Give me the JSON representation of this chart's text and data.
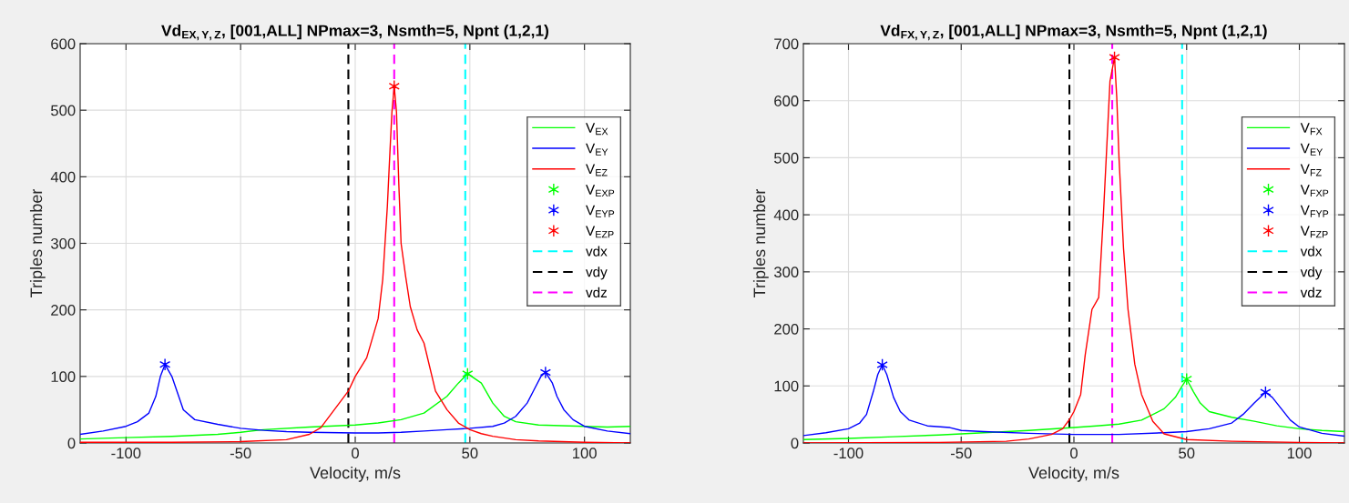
{
  "chart_data": [
    {
      "type": "line",
      "title": "Vd$_{EX,Y,Z}$, [001,ALL] NPmax=3, Nsmth=5, Npnt (1,2,1)",
      "xlabel": "Velocity, m/s",
      "ylabel": "Triples number",
      "xlim": [
        -120,
        120
      ],
      "ylim": [
        0,
        600
      ],
      "xticks": [
        -100,
        -50,
        0,
        50,
        100
      ],
      "yticks": [
        0,
        100,
        200,
        300,
        400,
        500,
        600
      ],
      "grid": true,
      "legend": "right",
      "series": [
        {
          "name": "V$_{EX}$",
          "color": "#00ff00",
          "x": [
            -120,
            -100,
            -80,
            -60,
            -50,
            -40,
            -20,
            0,
            10,
            20,
            30,
            40,
            45,
            49,
            55,
            60,
            65,
            70,
            80,
            90,
            100,
            110,
            120
          ],
          "values": [
            6,
            8,
            10,
            13,
            16,
            20,
            24,
            27,
            30,
            35,
            45,
            70,
            90,
            104,
            90,
            60,
            40,
            32,
            27,
            26,
            25,
            24,
            25
          ]
        },
        {
          "name": "V$_{EY}$",
          "color": "#0000ff",
          "x": [
            -120,
            -110,
            -100,
            -95,
            -90,
            -87,
            -85,
            -83,
            -80,
            -77,
            -75,
            -70,
            -60,
            -50,
            -40,
            -30,
            -20,
            0,
            10,
            20,
            30,
            40,
            50,
            60,
            65,
            70,
            75,
            78,
            81,
            83,
            86,
            88,
            91,
            95,
            100,
            110,
            120
          ],
          "values": [
            13,
            18,
            25,
            32,
            45,
            70,
            100,
            118,
            100,
            70,
            50,
            35,
            28,
            22,
            19,
            17,
            16,
            15,
            15,
            16,
            18,
            20,
            22,
            25,
            30,
            40,
            60,
            80,
            100,
            106,
            90,
            70,
            50,
            35,
            25,
            18,
            14
          ]
        },
        {
          "name": "V$_{EZ}$",
          "color": "#ff0000",
          "x": [
            -120,
            -80,
            -50,
            -30,
            -20,
            -15,
            -10,
            -3,
            0,
            5,
            10,
            12,
            14,
            15,
            16,
            17,
            18,
            19,
            20,
            22,
            24,
            27,
            30,
            35,
            40,
            45,
            50,
            55,
            60,
            70,
            80,
            100,
            120
          ],
          "values": [
            1,
            1,
            2,
            5,
            13,
            23,
            46,
            78,
            100,
            128,
            187,
            246,
            355,
            428,
            497,
            536,
            497,
            390,
            300,
            250,
            205,
            170,
            150,
            78,
            50,
            30,
            20,
            14,
            10,
            5,
            3,
            1,
            0
          ]
        },
        {
          "name": "V$_{EXP}$",
          "type": "scatter",
          "marker": "cross",
          "color": "#00ff00",
          "x": [
            49
          ],
          "values": [
            104
          ]
        },
        {
          "name": "V$_{EYP}$",
          "type": "scatter",
          "marker": "cross",
          "color": "#0000ff",
          "x": [
            -83,
            83
          ],
          "values": [
            118,
            106
          ]
        },
        {
          "name": "V$_{EZP}$",
          "type": "scatter",
          "marker": "cross",
          "color": "#ff0000",
          "x": [
            17
          ],
          "values": [
            536
          ]
        },
        {
          "name": "vdx",
          "type": "line",
          "line_style": "dashed",
          "color": "#00ffff",
          "x": [
            48,
            48
          ],
          "values": [
            0,
            600
          ]
        },
        {
          "name": "vdy",
          "type": "line",
          "line_style": "dashed",
          "color": "#000000",
          "x": [
            -3,
            -3
          ],
          "values": [
            0,
            600
          ]
        },
        {
          "name": "vdz",
          "type": "line",
          "line_style": "dashed",
          "color": "#ff00ff",
          "x": [
            17,
            17
          ],
          "values": [
            0,
            600
          ]
        }
      ]
    },
    {
      "type": "line",
      "title": "Vd$_{FX,Y,Z}$, [001,ALL] NPmax=3, Nsmth=5, Npnt (1,2,1)",
      "xlabel": "Velocity, m/s",
      "ylabel": "Triples number",
      "xlim": [
        -120,
        120
      ],
      "ylim": [
        0,
        700
      ],
      "xticks": [
        -100,
        -50,
        0,
        50,
        100
      ],
      "yticks": [
        0,
        100,
        200,
        300,
        400,
        500,
        600,
        700
      ],
      "grid": true,
      "legend": "right",
      "series": [
        {
          "name": "V$_{FX}$",
          "color": "#00ff00",
          "x": [
            -120,
            -100,
            -80,
            -60,
            -40,
            -20,
            0,
            10,
            20,
            30,
            40,
            45,
            48,
            50,
            53,
            56,
            60,
            70,
            80,
            90,
            100,
            110,
            120
          ],
          "values": [
            6,
            8,
            11,
            14,
            18,
            22,
            27,
            30,
            33,
            40,
            60,
            80,
            100,
            112,
            90,
            70,
            55,
            45,
            38,
            30,
            25,
            22,
            20
          ]
        },
        {
          "name": "V$_{EY}$",
          "color": "#0000ff",
          "x": [
            -120,
            -110,
            -100,
            -95,
            -92,
            -89,
            -87,
            -85,
            -83,
            -80,
            -77,
            -73,
            -65,
            -55,
            -50,
            -40,
            -20,
            0,
            20,
            40,
            50,
            60,
            70,
            75,
            80,
            85,
            88,
            92,
            96,
            100,
            110,
            120
          ],
          "values": [
            13,
            18,
            25,
            35,
            50,
            90,
            120,
            137,
            120,
            80,
            55,
            40,
            30,
            27,
            22,
            20,
            17,
            15,
            15,
            18,
            20,
            25,
            35,
            50,
            70,
            89,
            80,
            60,
            40,
            28,
            17,
            12
          ]
        },
        {
          "name": "V$_{FZ}$",
          "color": "#ff0000",
          "x": [
            -120,
            -60,
            -30,
            -20,
            -10,
            -5,
            -2,
            0,
            3,
            5,
            8,
            11,
            13,
            15,
            16,
            18,
            19,
            20,
            22,
            24,
            27,
            30,
            35,
            40,
            50,
            70,
            100,
            120
          ],
          "values": [
            0,
            1,
            3,
            7,
            15,
            25,
            41,
            55,
            85,
            154,
            234,
            255,
            394,
            553,
            634,
            676,
            606,
            500,
            341,
            234,
            138,
            85,
            38,
            16,
            6,
            3,
            1,
            0
          ]
        },
        {
          "name": "V$_{FXP}$",
          "type": "scatter",
          "marker": "cross",
          "color": "#00ff00",
          "x": [
            50
          ],
          "values": [
            112
          ]
        },
        {
          "name": "V$_{FYP}$",
          "type": "scatter",
          "marker": "cross",
          "color": "#0000ff",
          "x": [
            -85,
            85
          ],
          "values": [
            137,
            89
          ]
        },
        {
          "name": "V$_{FZP}$",
          "type": "scatter",
          "marker": "cross",
          "color": "#ff0000",
          "x": [
            18
          ],
          "values": [
            676
          ]
        },
        {
          "name": "vdx",
          "type": "line",
          "line_style": "dashed",
          "color": "#00ffff",
          "x": [
            48,
            48
          ],
          "values": [
            0,
            700
          ]
        },
        {
          "name": "vdy",
          "type": "line",
          "line_style": "dashed",
          "color": "#000000",
          "x": [
            -2,
            -2
          ],
          "values": [
            0,
            700
          ]
        },
        {
          "name": "vdz",
          "type": "line",
          "line_style": "dashed",
          "color": "#ff00ff",
          "x": [
            17,
            17
          ],
          "values": [
            0,
            700
          ]
        }
      ]
    }
  ]
}
